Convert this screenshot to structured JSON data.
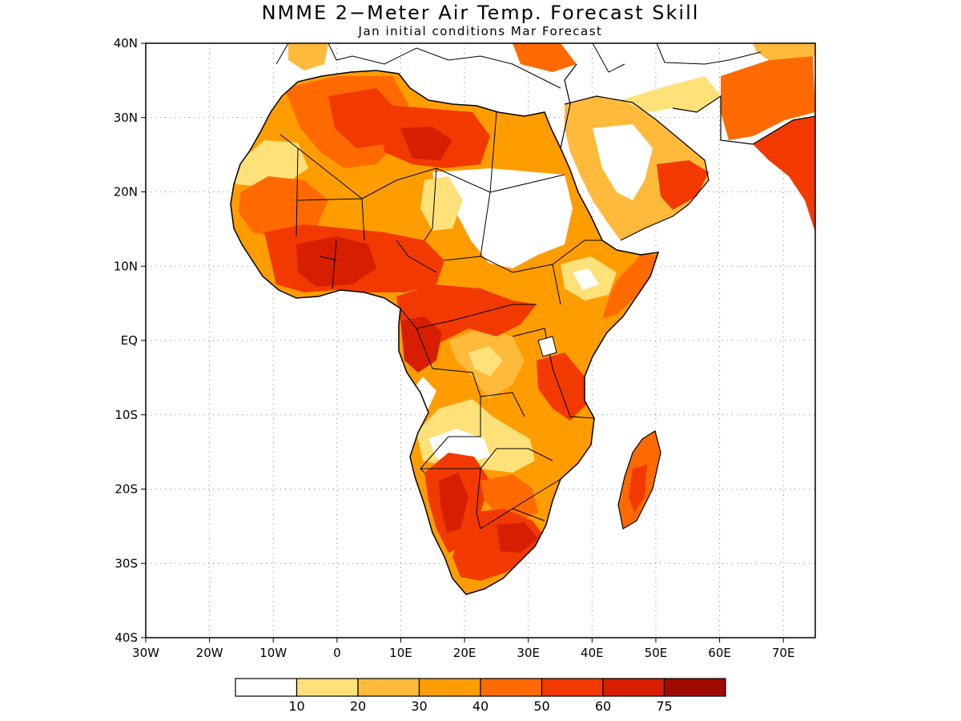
{
  "title": "NMME 2−Meter Air Temp. Forecast Skill",
  "subtitle": "Jan initial conditions  Mar Forecast",
  "map": {
    "lon_range": [
      -30,
      75
    ],
    "lat_range": [
      -40,
      40
    ],
    "lat_ticks": [
      {
        "value": 40,
        "label": "40N"
      },
      {
        "value": 30,
        "label": "30N"
      },
      {
        "value": 20,
        "label": "20N"
      },
      {
        "value": 10,
        "label": "10N"
      },
      {
        "value": 0,
        "label": "EQ"
      },
      {
        "value": -10,
        "label": "10S"
      },
      {
        "value": -20,
        "label": "20S"
      },
      {
        "value": -30,
        "label": "30S"
      },
      {
        "value": -40,
        "label": "40S"
      }
    ],
    "lon_ticks": [
      {
        "value": -30,
        "label": "30W"
      },
      {
        "value": -20,
        "label": "20W"
      },
      {
        "value": -10,
        "label": "10W"
      },
      {
        "value": 0,
        "label": "0"
      },
      {
        "value": 10,
        "label": "10E"
      },
      {
        "value": 20,
        "label": "20E"
      },
      {
        "value": 30,
        "label": "30E"
      },
      {
        "value": 40,
        "label": "40E"
      },
      {
        "value": 50,
        "label": "50E"
      },
      {
        "value": 60,
        "label": "60E"
      },
      {
        "value": 70,
        "label": "70E"
      }
    ]
  },
  "colorbar": {
    "colors": [
      "#ffffff",
      "#ffe17a",
      "#ffba3c",
      "#ff9d00",
      "#ff6a00",
      "#f23a00",
      "#d71e00",
      "#a00a00"
    ],
    "labels": [
      "10",
      "20",
      "30",
      "40",
      "50",
      "60",
      "75"
    ]
  }
}
